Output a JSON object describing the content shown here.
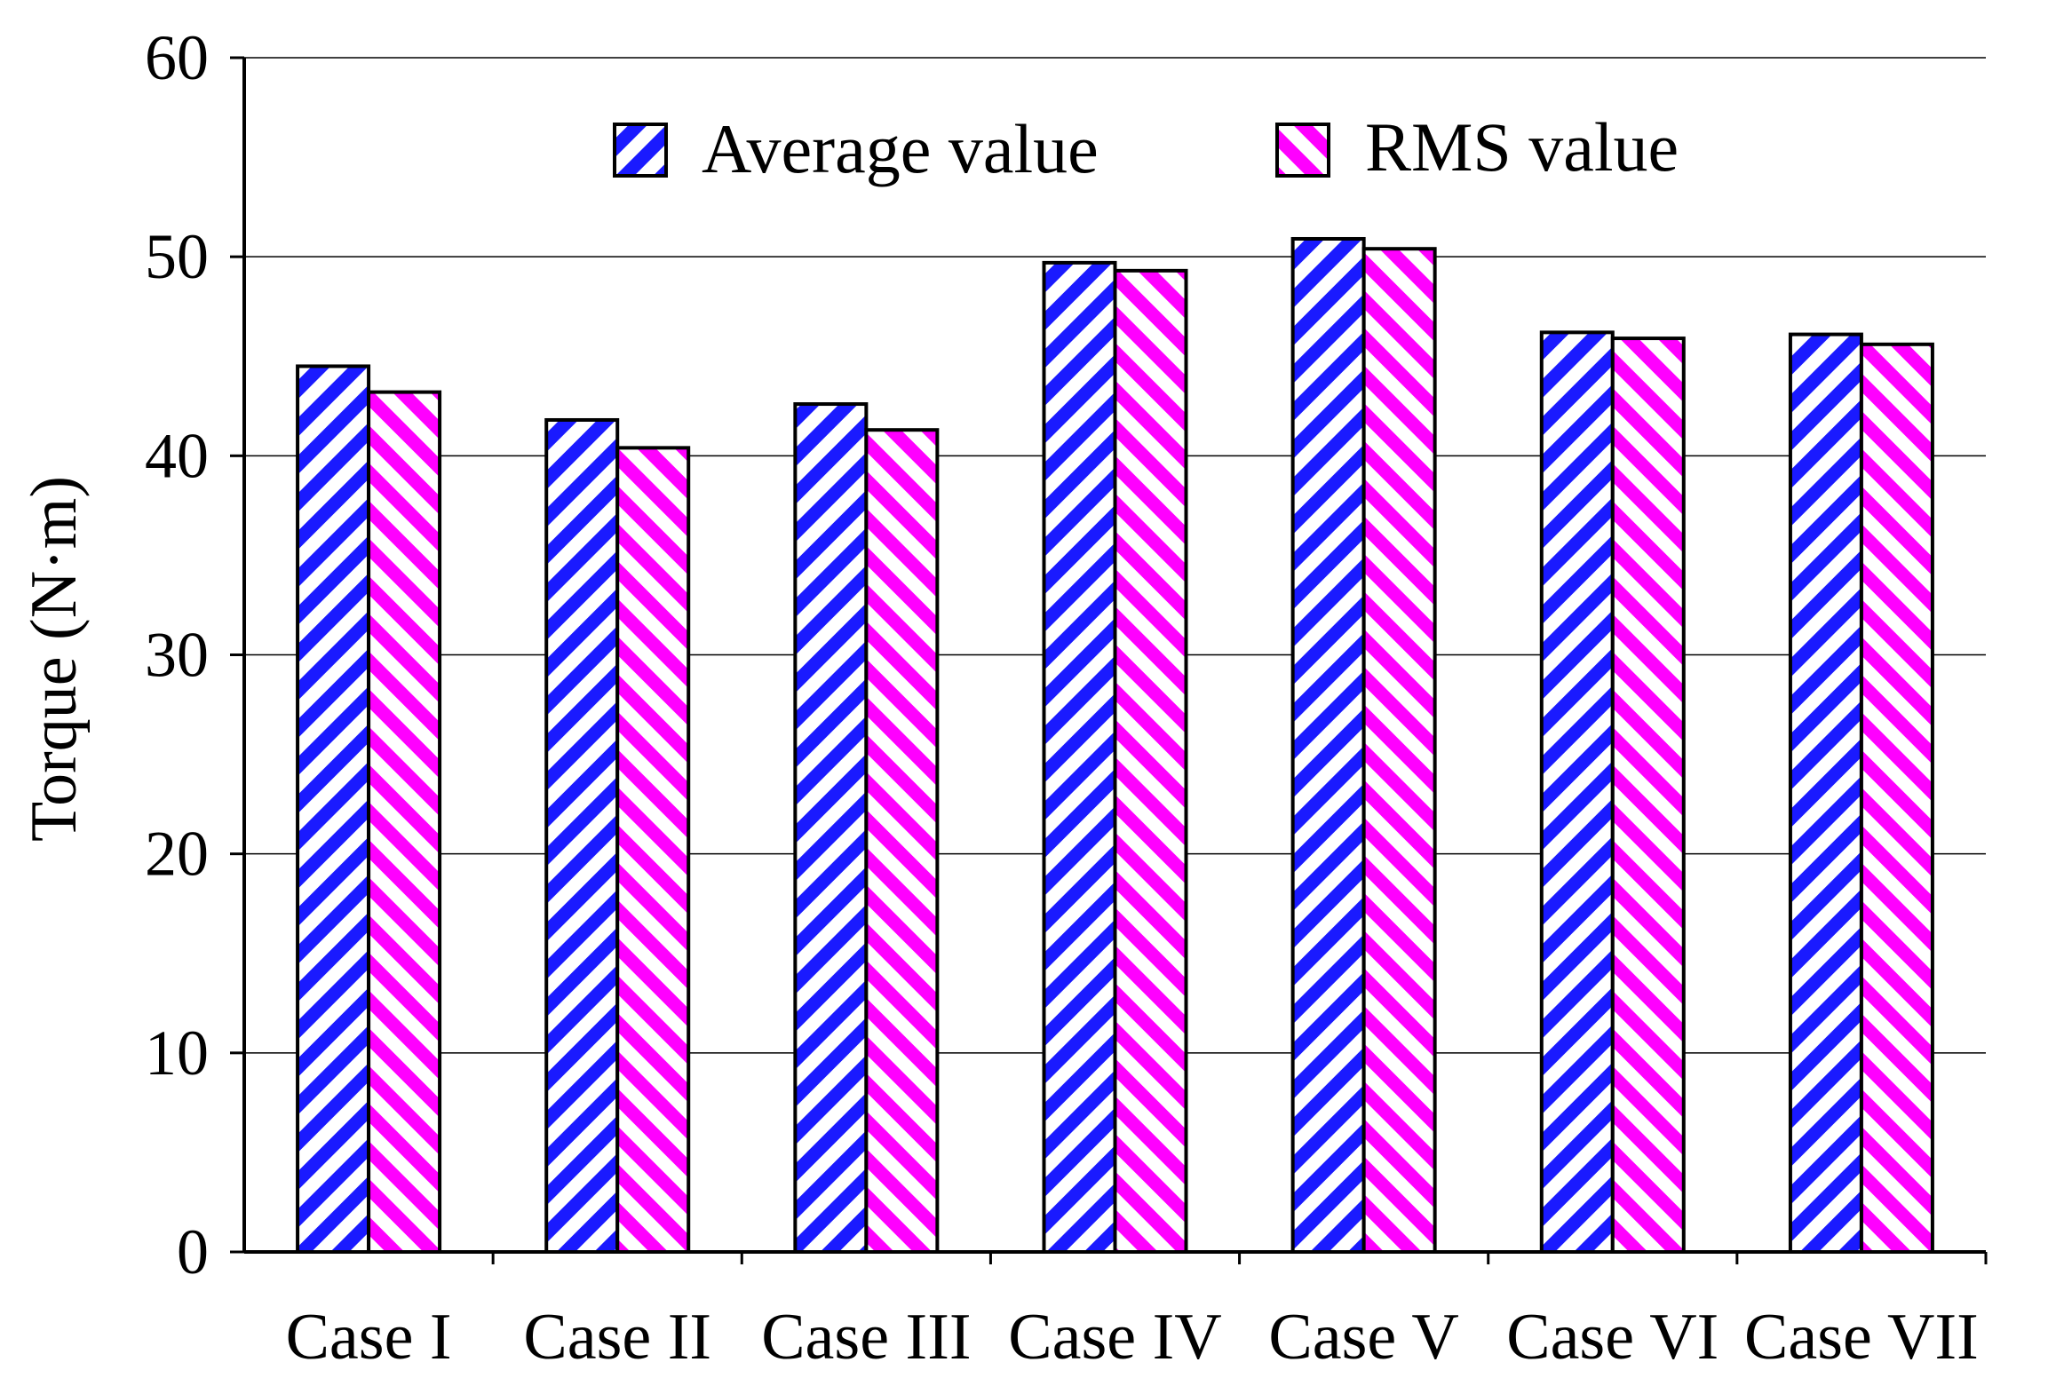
{
  "chart_data": {
    "type": "bar",
    "title": "",
    "xlabel": "",
    "ylabel": "Torque (N·m)",
    "ylim": [
      0,
      60
    ],
    "yticks": [
      0,
      10,
      20,
      30,
      40,
      50,
      60
    ],
    "grid": true,
    "legend_position": "top-center",
    "categories": [
      "Case I",
      "Case II",
      "Case III",
      "Case IV",
      "Case V",
      "Case VI",
      "Case VII"
    ],
    "series": [
      {
        "name": "Average value",
        "values": [
          44.5,
          41.8,
          42.6,
          49.7,
          50.9,
          46.2,
          46.1
        ],
        "color": "#1a1aff",
        "hatch": "forward-diagonal"
      },
      {
        "name": "RMS value",
        "values": [
          43.2,
          40.4,
          41.3,
          49.3,
          50.4,
          45.9,
          45.6
        ],
        "color": "#ff00ff",
        "hatch": "back-diagonal"
      }
    ]
  }
}
